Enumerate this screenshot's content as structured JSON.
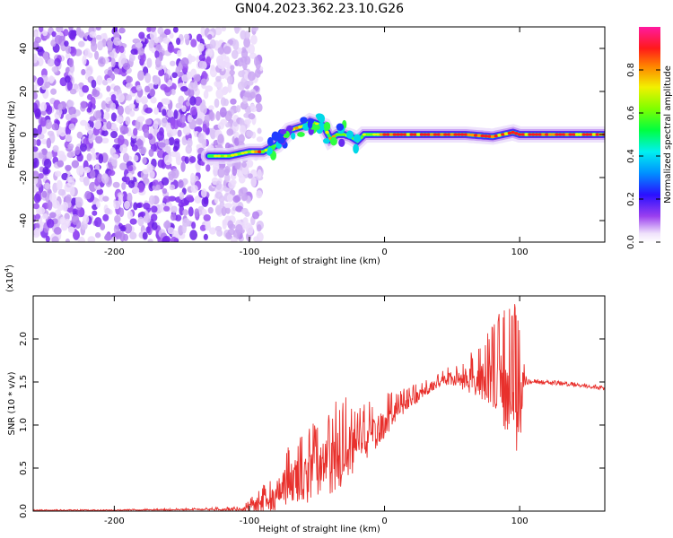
{
  "title": "GN04.2023.362.23.10.G26",
  "colors": {
    "snr_line": "#e8302c",
    "axis": "#000000"
  },
  "chart_data": [
    {
      "type": "heatmap",
      "title": "GN04.2023.362.23.10.G26",
      "xlabel": "Height of straight line (km)",
      "ylabel": "Frequency (Hz)",
      "xlim": [
        -260,
        163
      ],
      "ylim": [
        -50,
        50
      ],
      "xticks": [
        "-200",
        "-100",
        "0",
        "100"
      ],
      "xtick_values": [
        -200,
        -100,
        0,
        100
      ],
      "yticks": [
        "-40",
        "-20",
        "0",
        "20",
        "40"
      ],
      "ytick_values": [
        -40,
        -20,
        0,
        20,
        40
      ],
      "colorbar": {
        "label": "Normalized spectral amplitude",
        "range": [
          0,
          1
        ],
        "ticks": [
          "0.0",
          "0.2",
          "0.4",
          "0.6",
          "0.8"
        ],
        "tick_values": [
          0,
          0.2,
          0.4,
          0.6,
          0.8
        ],
        "colormap": "rainbow (white-violet-blue-cyan-green-yellow-red-magenta)"
      },
      "noise_region_x": [
        -260,
        -100
      ],
      "ridge": {
        "x": [
          -130,
          -115,
          -100,
          -90,
          -80,
          -70,
          -60,
          -55,
          -50,
          -45,
          -40,
          -35,
          -30,
          -25,
          -20,
          -15,
          -10,
          0,
          20,
          40,
          60,
          80,
          95,
          100,
          110,
          130,
          150,
          163
        ],
        "y": [
          -10,
          -10,
          -8,
          -8,
          -5,
          2,
          4,
          6,
          5,
          4,
          -2,
          0,
          0,
          -1,
          -3,
          0,
          0,
          0,
          0,
          0,
          0,
          -1,
          1,
          0,
          0,
          0,
          0,
          0
        ]
      }
    },
    {
      "type": "line",
      "xlabel": "Height of straight line (km)",
      "ylabel": "SNR (10 * v/v)",
      "y_scale_label": "(x10",
      "y_scale_exp": "4",
      "y_scale_close": ")",
      "xlim": [
        -260,
        163
      ],
      "ylim": [
        0,
        2.5
      ],
      "xticks": [
        "-200",
        "-100",
        "0",
        "100"
      ],
      "xtick_values": [
        -200,
        -100,
        0,
        100
      ],
      "yticks": [
        "0.0",
        "0.5",
        "1.0",
        "1.5",
        "2.0"
      ],
      "ytick_values": [
        0,
        0.5,
        1.0,
        1.5,
        2.0
      ],
      "series": [
        {
          "color": "#e8302c",
          "x": [
            -260,
            -200,
            -140,
            -105,
            -95,
            -85,
            -80,
            -75,
            -70,
            -65,
            -60,
            -55,
            -50,
            -45,
            -40,
            -30,
            -20,
            -10,
            0,
            10,
            20,
            30,
            40,
            50,
            60,
            70,
            80,
            90,
            95,
            100,
            105,
            110,
            130,
            150,
            163
          ],
          "y": [
            0.01,
            0.01,
            0.02,
            0.02,
            0.08,
            0.12,
            0.2,
            0.3,
            0.35,
            0.4,
            0.38,
            0.45,
            0.5,
            0.55,
            0.6,
            0.7,
            0.8,
            0.9,
            1.05,
            1.2,
            1.3,
            1.4,
            1.5,
            1.55,
            1.55,
            1.55,
            1.55,
            1.5,
            1.4,
            1.3,
            1.5,
            1.5,
            1.48,
            1.45,
            1.42
          ],
          "amplitude": [
            0.005,
            0.005,
            0.01,
            0.02,
            0.1,
            0.15,
            0.2,
            0.25,
            0.3,
            0.3,
            0.3,
            0.35,
            0.4,
            0.4,
            0.4,
            0.4,
            0.3,
            0.25,
            0.2,
            0.12,
            0.1,
            0.08,
            0.06,
            0.1,
            0.15,
            0.25,
            0.4,
            0.6,
            0.7,
            0.6,
            0.03,
            0.02,
            0.02,
            0.02,
            0.02
          ]
        }
      ]
    }
  ]
}
